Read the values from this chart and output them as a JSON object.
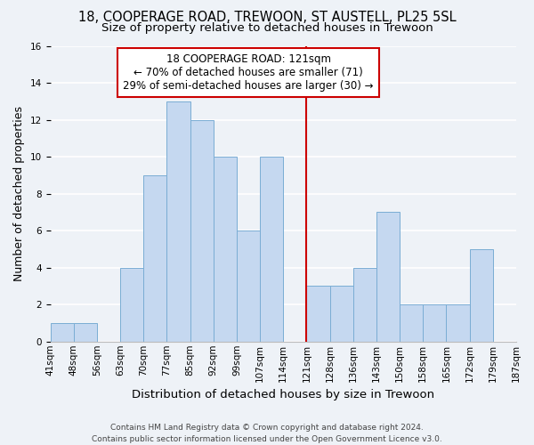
{
  "title": "18, COOPERAGE ROAD, TREWOON, ST AUSTELL, PL25 5SL",
  "subtitle": "Size of property relative to detached houses in Trewoon",
  "xlabel": "Distribution of detached houses by size in Trewoon",
  "ylabel": "Number of detached properties",
  "bin_labels": [
    "41sqm",
    "48sqm",
    "56sqm",
    "63sqm",
    "70sqm",
    "77sqm",
    "85sqm",
    "92sqm",
    "99sqm",
    "107sqm",
    "114sqm",
    "121sqm",
    "128sqm",
    "136sqm",
    "143sqm",
    "150sqm",
    "158sqm",
    "165sqm",
    "172sqm",
    "179sqm",
    "187sqm"
  ],
  "values": [
    1,
    1,
    0,
    4,
    9,
    13,
    12,
    10,
    6,
    10,
    0,
    3,
    3,
    4,
    7,
    2,
    2,
    2,
    5,
    0
  ],
  "bar_color": "#c5d8f0",
  "bar_edge_color": "#7aadd4",
  "highlight_bin_index": 11,
  "highlight_line_color": "#cc0000",
  "annotation_text": "18 COOPERAGE ROAD: 121sqm\n← 70% of detached houses are smaller (71)\n29% of semi-detached houses are larger (30) →",
  "annotation_box_color": "#ffffff",
  "annotation_box_edge_color": "#cc0000",
  "ylim": [
    0,
    16
  ],
  "yticks": [
    0,
    2,
    4,
    6,
    8,
    10,
    12,
    14,
    16
  ],
  "background_color": "#eef2f7",
  "footer_text": "Contains HM Land Registry data © Crown copyright and database right 2024.\nContains public sector information licensed under the Open Government Licence v3.0.",
  "title_fontsize": 10.5,
  "subtitle_fontsize": 9.5,
  "xlabel_fontsize": 9.5,
  "ylabel_fontsize": 9,
  "tick_fontsize": 7.5,
  "annotation_fontsize": 8.5,
  "footer_fontsize": 6.5
}
